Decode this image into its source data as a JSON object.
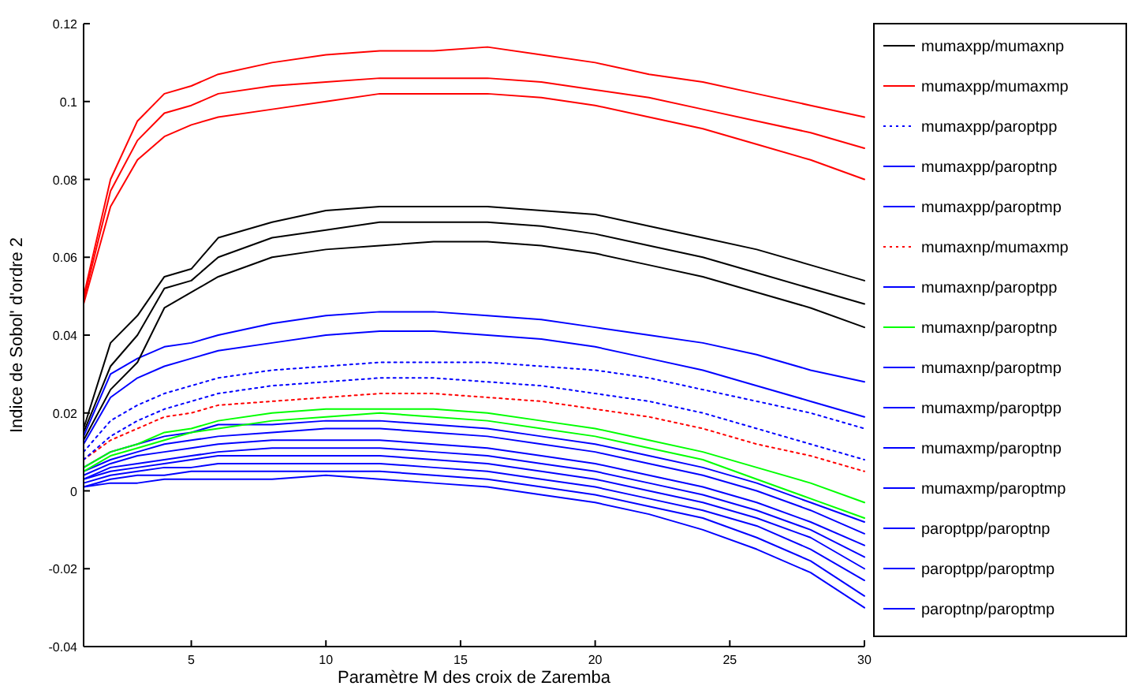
{
  "chart_data": {
    "type": "line",
    "xlabel": "Paramètre M des croix de Zaremba",
    "ylabel": "Indice de Sobol' d'ordre 2",
    "x": [
      1,
      2,
      3,
      4,
      5,
      6,
      8,
      10,
      12,
      14,
      16,
      18,
      20,
      22,
      24,
      26,
      28,
      30
    ],
    "xlim": [
      1,
      30
    ],
    "xticks": [
      5,
      10,
      15,
      20,
      25,
      30
    ],
    "ylim": [
      -0.04,
      0.12
    ],
    "yticks": [
      -0.04,
      -0.02,
      0,
      0.02,
      0.04,
      0.06,
      0.08,
      0.1,
      0.12
    ],
    "grid": false,
    "legend": "right",
    "marker": "none",
    "line_style": "solid",
    "series": [
      {
        "name": "mumaxpp/mumaxnp",
        "color": "#000000",
        "values": [
          0.016,
          0.038,
          0.045,
          0.055,
          0.057,
          0.065,
          0.069,
          0.072,
          0.073,
          0.073,
          0.073,
          0.072,
          0.071,
          0.068,
          0.065,
          0.062,
          0.058,
          0.054
        ]
      },
      {
        "name": "mumaxpp/mumaxmp",
        "color": "#ff0000",
        "values": [
          0.05,
          0.08,
          0.095,
          0.102,
          0.104,
          0.107,
          0.11,
          0.112,
          0.113,
          0.113,
          0.114,
          0.112,
          0.11,
          0.107,
          0.105,
          0.102,
          0.099,
          0.096
        ]
      },
      {
        "name": "mumaxpp/paroptpp",
        "color": "#0000ff",
        "line_style": "dotted",
        "values": [
          0.01,
          0.018,
          0.022,
          0.025,
          0.027,
          0.029,
          0.031,
          0.032,
          0.033,
          0.033,
          0.033,
          0.032,
          0.031,
          0.029,
          0.026,
          0.023,
          0.02,
          0.016
        ]
      },
      {
        "name": "mumaxpp/paroptnp",
        "color": "#0000ff",
        "values": [
          0.014,
          0.03,
          0.034,
          0.037,
          0.038,
          0.04,
          0.043,
          0.045,
          0.046,
          0.046,
          0.045,
          0.044,
          0.042,
          0.04,
          0.038,
          0.035,
          0.031,
          0.028
        ]
      },
      {
        "name": "mumaxpp/paroptmp",
        "color": "#0000ff",
        "values": [
          0.012,
          0.024,
          0.029,
          0.032,
          0.034,
          0.036,
          0.038,
          0.04,
          0.041,
          0.041,
          0.04,
          0.039,
          0.037,
          0.034,
          0.031,
          0.027,
          0.023,
          0.019
        ]
      },
      {
        "name": "mumaxnp/mumaxmp",
        "color": "#ff0000",
        "line_style": "dotted",
        "values": [
          0.008,
          0.013,
          0.016,
          0.019,
          0.02,
          0.022,
          0.023,
          0.024,
          0.025,
          0.025,
          0.024,
          0.023,
          0.021,
          0.019,
          0.016,
          0.012,
          0.009,
          0.005
        ]
      },
      {
        "name": "mumaxnp/paroptpp",
        "color": "#0000ff",
        "values": [
          0.006,
          0.01,
          0.012,
          0.014,
          0.015,
          0.017,
          0.017,
          0.018,
          0.018,
          0.017,
          0.016,
          0.014,
          0.012,
          0.009,
          0.006,
          0.002,
          -0.003,
          -0.008
        ]
      },
      {
        "name": "mumaxnp/paroptnp",
        "color": "#00ff00",
        "values": [
          0.006,
          0.01,
          0.012,
          0.015,
          0.016,
          0.018,
          0.02,
          0.021,
          0.021,
          0.021,
          0.02,
          0.018,
          0.016,
          0.013,
          0.01,
          0.006,
          0.002,
          -0.003
        ]
      },
      {
        "name": "mumaxnp/paroptmp",
        "color": "#0000ff",
        "values": [
          0.005,
          0.008,
          0.01,
          0.012,
          0.013,
          0.014,
          0.015,
          0.016,
          0.016,
          0.015,
          0.014,
          0.012,
          0.01,
          0.007,
          0.004,
          0,
          -0.005,
          -0.011
        ]
      },
      {
        "name": "mumaxmp/paroptpp",
        "color": "#0000ff",
        "values": [
          0.004,
          0.007,
          0.009,
          0.01,
          0.011,
          0.012,
          0.013,
          0.013,
          0.013,
          0.012,
          0.011,
          0.009,
          0.007,
          0.004,
          0.001,
          -0.003,
          -0.008,
          -0.014
        ]
      },
      {
        "name": "mumaxmp/paroptnp",
        "color": "#0000ff",
        "values": [
          0.003,
          0.006,
          0.007,
          0.008,
          0.009,
          0.01,
          0.011,
          0.011,
          0.011,
          0.01,
          0.009,
          0.007,
          0.005,
          0.002,
          -0.001,
          -0.005,
          -0.01,
          -0.017
        ]
      },
      {
        "name": "mumaxmp/paroptmp",
        "color": "#0000ff",
        "values": [
          0.003,
          0.005,
          0.006,
          0.007,
          0.008,
          0.009,
          0.009,
          0.009,
          0.009,
          0.008,
          0.007,
          0.005,
          0.003,
          0,
          -0.003,
          -0.007,
          -0.012,
          -0.02
        ]
      },
      {
        "name": "paroptpp/paroptnp",
        "color": "#0000ff",
        "values": [
          0.002,
          0.004,
          0.005,
          0.006,
          0.006,
          0.007,
          0.007,
          0.007,
          0.007,
          0.006,
          0.005,
          0.003,
          0.001,
          -0.002,
          -0.005,
          -0.009,
          -0.015,
          -0.023
        ]
      },
      {
        "name": "paroptpp/paroptmp",
        "color": "#0000ff",
        "values": [
          0.001,
          0.003,
          0.004,
          0.004,
          0.005,
          0.005,
          0.005,
          0.005,
          0.005,
          0.004,
          0.003,
          0.001,
          -0.001,
          -0.004,
          -0.007,
          -0.012,
          -0.018,
          -0.027
        ]
      },
      {
        "name": "paroptnp/paroptmp",
        "color": "#0000ff",
        "values": [
          0.001,
          0.002,
          0.002,
          0.003,
          0.003,
          0.003,
          0.003,
          0.004,
          0.003,
          0.002,
          0.001,
          -0.001,
          -0.003,
          -0.006,
          -0.01,
          -0.015,
          -0.021,
          -0.03
        ]
      },
      {
        "color": "#ff0000",
        "values": [
          0.048,
          0.073,
          0.085,
          0.091,
          0.094,
          0.096,
          0.098,
          0.1,
          0.102,
          0.102,
          0.102,
          0.101,
          0.099,
          0.096,
          0.093,
          0.089,
          0.085,
          0.08
        ]
      },
      {
        "color": "#ff0000",
        "values": [
          0.049,
          0.077,
          0.09,
          0.097,
          0.099,
          0.102,
          0.104,
          0.105,
          0.106,
          0.106,
          0.106,
          0.105,
          0.103,
          0.101,
          0.098,
          0.095,
          0.092,
          0.088
        ]
      },
      {
        "color": "#000000",
        "values": [
          0.013,
          0.026,
          0.033,
          0.047,
          0.051,
          0.055,
          0.06,
          0.062,
          0.063,
          0.064,
          0.064,
          0.063,
          0.061,
          0.058,
          0.055,
          0.051,
          0.047,
          0.042
        ]
      },
      {
        "color": "#000000",
        "values": [
          0.015,
          0.032,
          0.04,
          0.052,
          0.054,
          0.06,
          0.065,
          0.067,
          0.069,
          0.069,
          0.069,
          0.068,
          0.066,
          0.063,
          0.06,
          0.056,
          0.052,
          0.048
        ]
      },
      {
        "color": "#0000ff",
        "line_style": "dotted",
        "values": [
          0.008,
          0.014,
          0.018,
          0.021,
          0.023,
          0.025,
          0.027,
          0.028,
          0.029,
          0.029,
          0.028,
          0.027,
          0.025,
          0.023,
          0.02,
          0.016,
          0.012,
          0.008
        ]
      },
      {
        "color": "#00ff00",
        "values": [
          0.005,
          0.009,
          0.011,
          0.013,
          0.015,
          0.016,
          0.018,
          0.019,
          0.02,
          0.019,
          0.018,
          0.016,
          0.014,
          0.011,
          0.008,
          0.003,
          -0.002,
          -0.007
        ]
      }
    ]
  }
}
